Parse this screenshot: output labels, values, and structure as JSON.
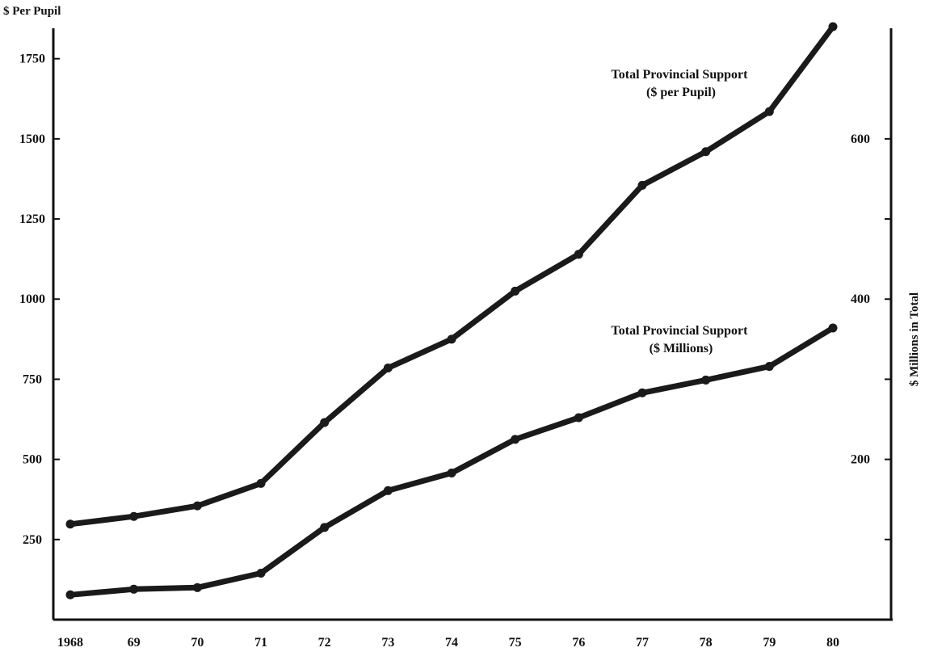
{
  "chart_data": {
    "type": "line",
    "x": [
      "1968",
      "69",
      "70",
      "71",
      "72",
      "73",
      "74",
      "75",
      "76",
      "77",
      "78",
      "79",
      "80"
    ],
    "left_axis": {
      "label": "$ Per Pupil",
      "ticks": [
        250,
        500,
        750,
        1000,
        1250,
        1500,
        1750
      ],
      "ylim": [
        0,
        1850
      ]
    },
    "right_axis": {
      "label": "$ Millions in Total",
      "ticks": [
        200,
        400,
        600
      ],
      "ylim": [
        0,
        740
      ]
    },
    "series": [
      {
        "name": "Total Provincial Support ($ per Pupil)",
        "axis": "left",
        "values": [
          298,
          322,
          355,
          425,
          615,
          785,
          875,
          1025,
          1140,
          1355,
          1460,
          1585,
          1850
        ]
      },
      {
        "name": "Total Provincial Support ($ Millions)",
        "axis": "right",
        "values": [
          31,
          38,
          40,
          58,
          115,
          161,
          183,
          225,
          252,
          283,
          299,
          316,
          364
        ]
      }
    ],
    "annotations": [
      {
        "series": 0,
        "lines": [
          "Total Provincial Support",
          "($ per Pupil)"
        ]
      },
      {
        "series": 1,
        "lines": [
          "Total Provincial Support",
          "($ Millions)"
        ]
      }
    ],
    "grid": false,
    "legend": "none"
  }
}
